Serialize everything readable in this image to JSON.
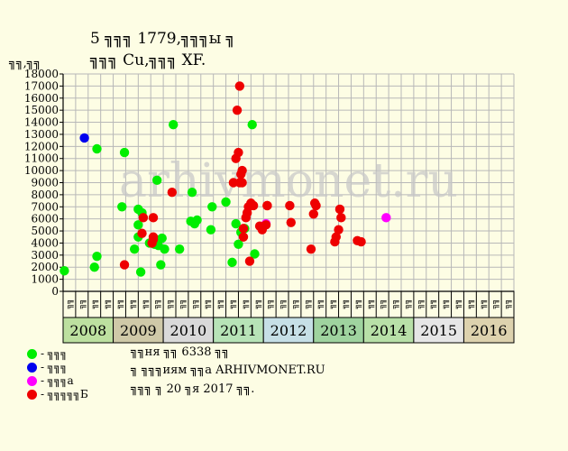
{
  "title_line1": "5 ╗╗╗ 1779,╗╗╗ы ╗",
  "title_line2": "╗╗╗ Cu,╗╗╗ XF.",
  "watermark": "arhivmonet.ru",
  "chart_data": {
    "type": "scatter",
    "ylabel": "╗╗,╗╗",
    "ylim": [
      0,
      18000
    ],
    "yticks": [
      "0",
      "1000",
      "2000",
      "3000",
      "4000",
      "5000",
      "6000",
      "7000",
      "8000",
      "9000",
      "10000",
      "11000",
      "12000",
      "13000",
      "14000",
      "15000",
      "16000",
      "17000",
      "18000"
    ],
    "grid": true,
    "x_start": "2008",
    "month_labels": [
      "╗╗",
      "╗╗",
      "╗╗",
      "╗╗"
    ],
    "years": [
      {
        "label": "2008",
        "color": "#bde0a0"
      },
      {
        "label": "2009",
        "color": "#cfc9a8"
      },
      {
        "label": "2010",
        "color": "#d9d9d9"
      },
      {
        "label": "2011",
        "color": "#b7e3b7"
      },
      {
        "label": "2012",
        "color": "#c6dfe6"
      },
      {
        "label": "2013",
        "color": "#9fd39f"
      },
      {
        "label": "2014",
        "color": "#b8e0a8"
      },
      {
        "label": "2015",
        "color": "#e6e6e6"
      },
      {
        "label": "2016",
        "color": "#ddd2ae"
      }
    ],
    "series": [
      {
        "name": "╗╗╗",
        "color": "#00ee00",
        "points": [
          [
            0.1,
            1700
          ],
          [
            2.5,
            2000
          ],
          [
            2.7,
            2900
          ],
          [
            2.7,
            11800
          ],
          [
            4.7,
            7000
          ],
          [
            4.9,
            11500
          ],
          [
            5.7,
            3500
          ],
          [
            6.0,
            4500
          ],
          [
            6.0,
            5500
          ],
          [
            6.0,
            6800
          ],
          [
            6.2,
            1600
          ],
          [
            6.3,
            6500
          ],
          [
            6.9,
            4000
          ],
          [
            7.3,
            3900
          ],
          [
            7.4,
            4300
          ],
          [
            7.5,
            9200
          ],
          [
            7.6,
            3800
          ],
          [
            7.8,
            2200
          ],
          [
            7.9,
            4400
          ],
          [
            8.1,
            3500
          ],
          [
            8.8,
            13800
          ],
          [
            9.3,
            3500
          ],
          [
            10.2,
            5800
          ],
          [
            10.3,
            8200
          ],
          [
            10.5,
            5600
          ],
          [
            10.7,
            5900
          ],
          [
            11.8,
            5100
          ],
          [
            11.9,
            7000
          ],
          [
            13.0,
            7400
          ],
          [
            13.5,
            2400
          ],
          [
            13.8,
            5600
          ],
          [
            14.0,
            3900
          ],
          [
            14.2,
            4900
          ],
          [
            14.5,
            5200
          ],
          [
            15.1,
            13800
          ],
          [
            15.3,
            3100
          ]
        ]
      },
      {
        "name": "╗╗╗",
        "color": "#0000ee",
        "points": [
          [
            1.7,
            12700
          ]
        ]
      },
      {
        "name": "╗╗╗а",
        "color": "#ff00ff",
        "points": [
          [
            16.2,
            5600
          ],
          [
            25.8,
            6100
          ]
        ]
      },
      {
        "name": "╗╗╗╗╗Б",
        "color": "#ee0000",
        "points": [
          [
            4.9,
            2200
          ],
          [
            6.3,
            4800
          ],
          [
            6.4,
            6100
          ],
          [
            7.1,
            4000
          ],
          [
            7.2,
            4300
          ],
          [
            7.2,
            4500
          ],
          [
            7.2,
            6100
          ],
          [
            8.7,
            8200
          ],
          [
            13.6,
            9000
          ],
          [
            13.8,
            11000
          ],
          [
            13.9,
            15000
          ],
          [
            14.0,
            11500
          ],
          [
            14.1,
            17000
          ],
          [
            14.1,
            9000
          ],
          [
            14.2,
            9700
          ],
          [
            14.3,
            10000
          ],
          [
            14.3,
            9000
          ],
          [
            14.4,
            4500
          ],
          [
            14.4,
            5200
          ],
          [
            14.6,
            6100
          ],
          [
            14.7,
            6500
          ],
          [
            14.8,
            7000
          ],
          [
            14.9,
            2500
          ],
          [
            15.0,
            7300
          ],
          [
            15.2,
            7100
          ],
          [
            15.7,
            5400
          ],
          [
            15.9,
            5100
          ],
          [
            16.3,
            7100
          ],
          [
            16.3,
            7100
          ],
          [
            16.2,
            5500
          ],
          [
            18.1,
            7100
          ],
          [
            18.2,
            5700
          ],
          [
            19.8,
            3500
          ],
          [
            20.0,
            6400
          ],
          [
            20.1,
            7300
          ],
          [
            20.2,
            7100
          ],
          [
            21.7,
            4100
          ],
          [
            21.8,
            4500
          ],
          [
            22.0,
            5100
          ],
          [
            22.1,
            6800
          ],
          [
            22.2,
            6100
          ],
          [
            23.5,
            4200
          ],
          [
            23.8,
            4100
          ]
        ]
      }
    ]
  },
  "legend": [
    {
      "label": "- ╗╗╗",
      "color": "#00ee00"
    },
    {
      "label": "- ╗╗╗",
      "color": "#0000ee"
    },
    {
      "label": "- ╗╗╗а",
      "color": "#ff00ff"
    },
    {
      "label": "- ╗╗╗╗╗Б",
      "color": "#ee0000"
    }
  ],
  "notes": [
    "╗╗ня ╗╗ 6338 ╗╗",
    "╗ ╗╗╗иям ╗╗а ARHIVMONET.RU",
    "╗╗╗ ╗ 20 ╗я 2017 ╗╗."
  ]
}
